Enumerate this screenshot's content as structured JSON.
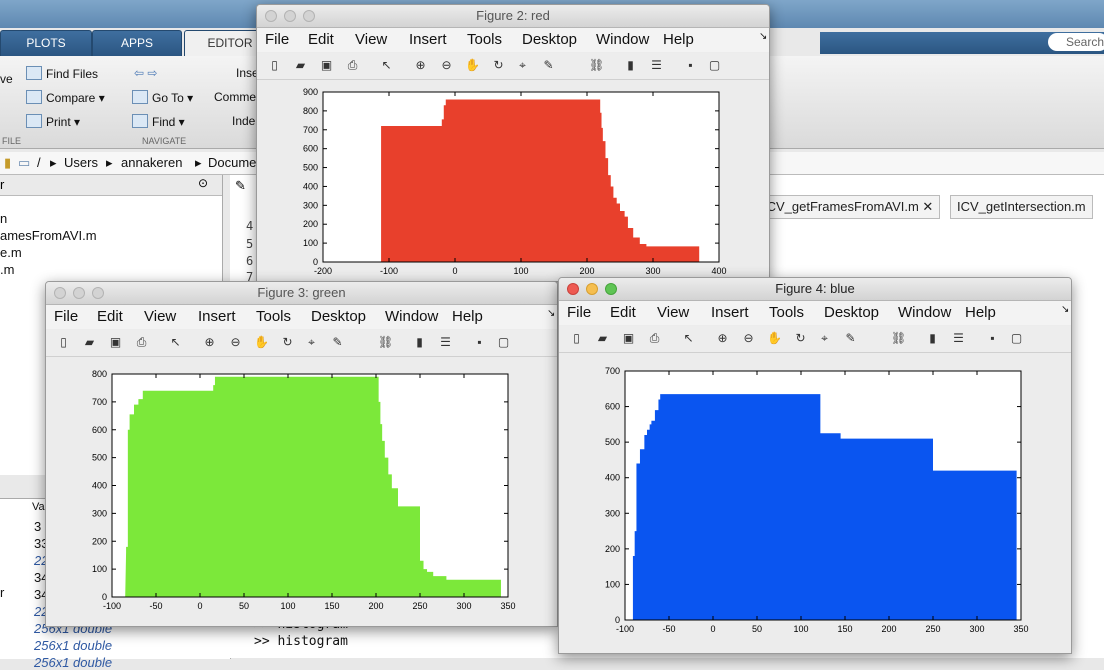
{
  "desktop": {
    "tabs": [
      "PLOTS",
      "APPS",
      "EDITOR"
    ],
    "ribbon": {
      "find_files": "Find Files",
      "compare": "Compare",
      "print": "Print",
      "go_to": "Go To",
      "find": "Find",
      "insert": "Inse",
      "comment": "Comme",
      "indent": "Inde",
      "save_partial": "ve",
      "file_label": "FILE",
      "navigate_label": "NAVIGATE"
    },
    "search_placeholder": "Search",
    "address": {
      "sep": "/",
      "users": "Users",
      "user": "annakeren",
      "docs": "Docume"
    },
    "filepane": {
      "header": "r",
      "items": [
        "n",
        "amesFromAVI.m",
        "e.m",
        ".m"
      ]
    },
    "workspace": {
      "value_header": "Va",
      "values": [
        "3",
        "33",
        "22",
        "34",
        "34",
        "22",
        "256x1 double",
        "256x1 double",
        "256x1 double"
      ],
      "names": [
        "r"
      ]
    },
    "editor_tabs": [
      "ICV_getFramesFromAVI.m",
      "ICV_getIntersection.m"
    ],
    "line_numbers": [
      "4",
      "5",
      "6",
      "7"
    ],
    "command_window": [
      ">> histogram",
      ">> histogram"
    ]
  },
  "menu_items": [
    "File",
    "Edit",
    "View",
    "Insert",
    "Tools",
    "Desktop",
    "Window",
    "Help"
  ],
  "toolbar_icons": [
    "new-figure-icon",
    "open-icon",
    "save-icon",
    "print-icon",
    "pointer-icon",
    "zoom-in-icon",
    "zoom-out-icon",
    "pan-icon",
    "rotate-icon",
    "data-cursor-icon",
    "brush-icon",
    "link-icon",
    "colorbar-icon",
    "legend-icon",
    "hide-tools-icon",
    "show-tools-icon"
  ],
  "figures": {
    "red": {
      "title": "Figure 2: red",
      "color": "#e8402c",
      "chart_data": {
        "type": "area",
        "title": "",
        "xlabel": "",
        "ylabel": "",
        "xlim": [
          -200,
          400
        ],
        "ylim": [
          0,
          900
        ],
        "xticks": [
          -200,
          -100,
          0,
          100,
          200,
          300,
          400
        ],
        "yticks": [
          0,
          100,
          200,
          300,
          400,
          500,
          600,
          700,
          800,
          900
        ],
        "series": [
          {
            "x": [
              -115,
              -112,
              -112,
              -20,
              -20,
              -17,
              -17,
              -14,
              -14,
              220,
              220,
              222,
              222,
              224,
              224,
              228,
              228,
              232,
              232,
              236,
              236,
              240,
              240,
              245,
              245,
              250,
              250,
              257,
              257,
              262,
              262,
              270,
              270,
              280,
              280,
              290,
              290,
              370
            ],
            "y": [
              0,
              0,
              720,
              720,
              755,
              755,
              830,
              830,
              860,
              860,
              790,
              790,
              710,
              710,
              640,
              640,
              550,
              550,
              460,
              460,
              400,
              400,
              340,
              340,
              310,
              310,
              270,
              270,
              240,
              240,
              180,
              180,
              130,
              130,
              95,
              95,
              83,
              83
            ]
          }
        ]
      }
    },
    "green": {
      "title": "Figure 3: green",
      "color": "#7ce83a",
      "chart_data": {
        "type": "area",
        "title": "",
        "xlabel": "",
        "ylabel": "",
        "xlim": [
          -100,
          350
        ],
        "ylim": [
          0,
          800
        ],
        "xticks": [
          -100,
          -50,
          0,
          50,
          100,
          150,
          200,
          250,
          300,
          350
        ],
        "yticks": [
          0,
          100,
          200,
          300,
          400,
          500,
          600,
          700,
          800
        ],
        "series": [
          {
            "x": [
              -85,
              -84,
              -84,
              -82,
              -82,
              -80,
              -80,
              -75,
              -75,
              -70,
              -70,
              -65,
              -65,
              15,
              15,
              17,
              17,
              20,
              20,
              203,
              203,
              205,
              205,
              207,
              207,
              210,
              210,
              214,
              214,
              218,
              218,
              225,
              225,
              250,
              250,
              254,
              254,
              258,
              258,
              265,
              265,
              280,
              280,
              342
            ],
            "y": [
              0,
              160,
              180,
              180,
              600,
              600,
              655,
              655,
              690,
              690,
              710,
              710,
              740,
              740,
              760,
              760,
              790,
              790,
              790,
              790,
              700,
              700,
              620,
              620,
              560,
              560,
              500,
              500,
              440,
              440,
              390,
              390,
              325,
              325,
              130,
              130,
              100,
              100,
              90,
              90,
              75,
              75,
              62,
              62
            ]
          }
        ]
      }
    },
    "blue": {
      "title": "Figure 4: blue",
      "color": "#0a55f0",
      "chart_data": {
        "type": "area",
        "title": "",
        "xlabel": "",
        "ylabel": "",
        "xlim": [
          -100,
          350
        ],
        "ylim": [
          0,
          700
        ],
        "xticks": [
          -100,
          -50,
          0,
          50,
          100,
          150,
          200,
          250,
          300,
          350
        ],
        "yticks": [
          0,
          100,
          200,
          300,
          400,
          500,
          600,
          700
        ],
        "series": [
          {
            "x": [
              -91,
              -91,
              -89,
              -89,
              -87,
              -87,
              -83,
              -83,
              -78,
              -78,
              -75,
              -75,
              -72,
              -72,
              -70,
              -70,
              -66,
              -66,
              -62,
              -62,
              -60,
              -60,
              122,
              122,
              145,
              145,
              250,
              250,
              345
            ],
            "y": [
              0,
              180,
              180,
              250,
              250,
              440,
              440,
              480,
              480,
              520,
              520,
              535,
              535,
              550,
              550,
              560,
              560,
              590,
              590,
              620,
              620,
              635,
              635,
              525,
              525,
              510,
              510,
              420,
              420
            ]
          }
        ]
      }
    }
  }
}
